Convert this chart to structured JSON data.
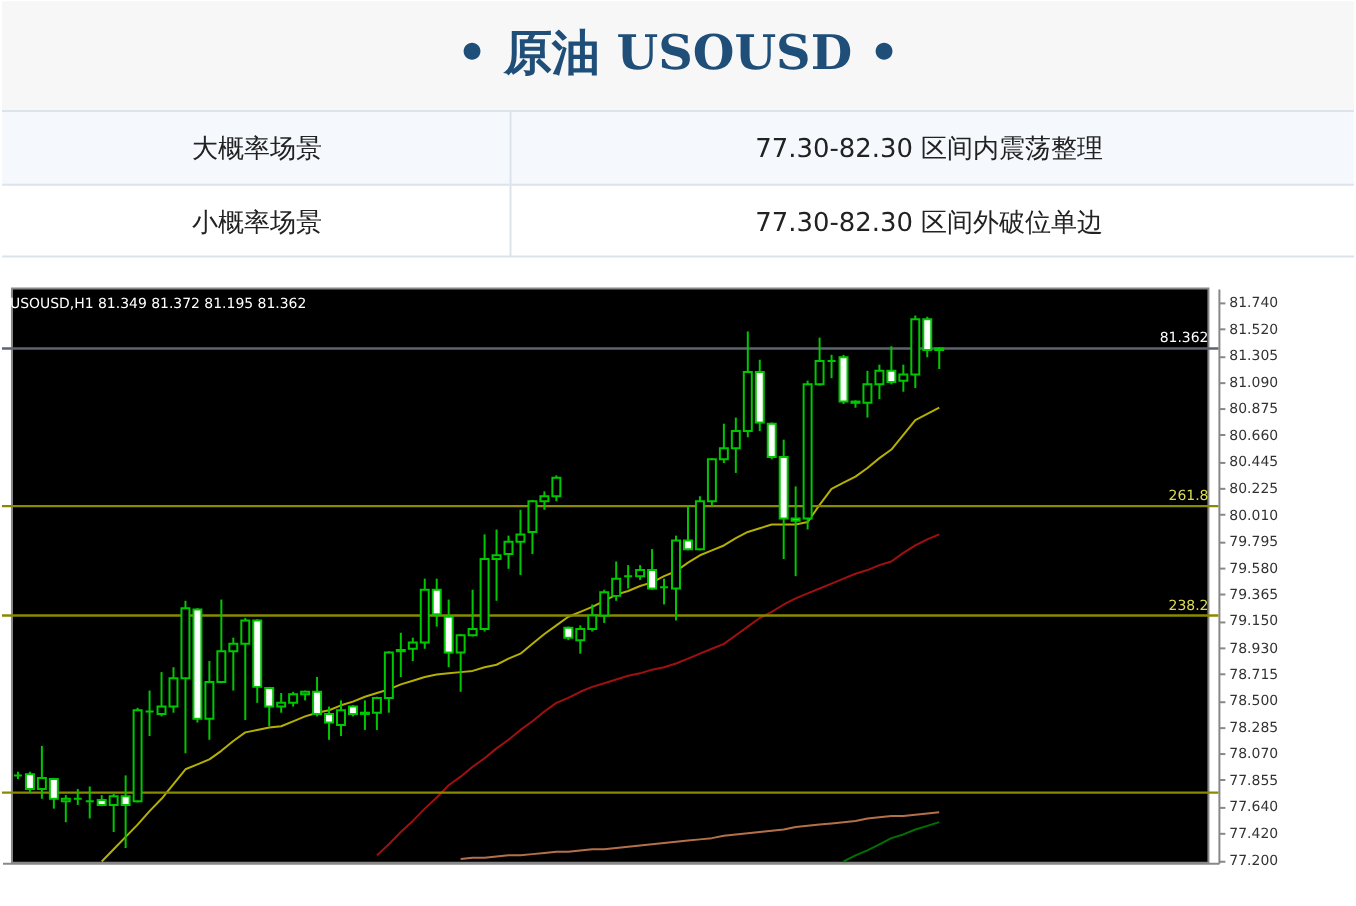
{
  "chart_data": {
    "type": "candlestick",
    "title": "• 原油 USOUSD •",
    "annotations": [
      "USOUSD,H1 81.349 81.372 81.195 81.362",
      "大概率场景",
      "77.30-82.30 区间内震荡整理",
      "小概率场景",
      "77.30-82.30 区间外破位单边",
      {
        "text": "261.8",
        "y": 80.08
      },
      {
        "text": "238.2",
        "y": 79.19
      }
    ],
    "categories": [
      null,
      null,
      null,
      null,
      null,
      null,
      null,
      null,
      null,
      null,
      null,
      null,
      null,
      null,
      null,
      null,
      null,
      null,
      null,
      null,
      null,
      null,
      null,
      null,
      null,
      null,
      null,
      null,
      null,
      null,
      null,
      null,
      null,
      null,
      null,
      null,
      null,
      null,
      null,
      null,
      null,
      null,
      null,
      null,
      null,
      null,
      null,
      null,
      null,
      null,
      null,
      null,
      null,
      null,
      null,
      null,
      null,
      null,
      null,
      null,
      null,
      null,
      null,
      null,
      null,
      null,
      null,
      null,
      null,
      null,
      null,
      null,
      null,
      null,
      null,
      null,
      null,
      null,
      null,
      null,
      null,
      null,
      null,
      null,
      null,
      null,
      null,
      null,
      null,
      null,
      null,
      null,
      null,
      null,
      null,
      null,
      null,
      null,
      null,
      null
    ],
    "color": "#00c800",
    "ohlc": [
      [
        77.89,
        77.92,
        77.86,
        77.89
      ],
      [
        77.9,
        77.92,
        77.75,
        77.78
      ],
      [
        77.78,
        78.13,
        77.7,
        77.87
      ],
      [
        77.86,
        77.87,
        77.62,
        77.7
      ],
      [
        77.68,
        77.73,
        77.51,
        77.7
      ],
      [
        77.7,
        77.78,
        77.65,
        77.7
      ],
      [
        77.68,
        77.8,
        77.54,
        77.68
      ],
      [
        77.69,
        77.73,
        77.64,
        77.65
      ],
      [
        77.65,
        77.74,
        77.43,
        77.72
      ],
      [
        77.72,
        77.89,
        77.3,
        77.65
      ],
      [
        77.68,
        78.44,
        77.67,
        78.42
      ],
      [
        78.41,
        78.58,
        78.21,
        78.41
      ],
      [
        78.39,
        78.73,
        78.37,
        78.45
      ],
      [
        78.45,
        78.77,
        78.4,
        78.68
      ],
      [
        78.68,
        79.31,
        78.07,
        79.25
      ],
      [
        79.24,
        79.25,
        78.32,
        78.35
      ],
      [
        78.35,
        78.82,
        78.18,
        78.65
      ],
      [
        78.65,
        79.32,
        78.64,
        78.9
      ],
      [
        78.9,
        79.01,
        78.58,
        78.96
      ],
      [
        78.96,
        79.17,
        78.34,
        79.15
      ],
      [
        79.15,
        79.16,
        78.48,
        78.61
      ],
      [
        78.6,
        78.61,
        78.29,
        78.45
      ],
      [
        78.45,
        78.56,
        78.4,
        78.48
      ],
      [
        78.48,
        78.57,
        78.45,
        78.55
      ],
      [
        78.55,
        78.58,
        78.5,
        78.57
      ],
      [
        78.57,
        78.69,
        78.37,
        78.39
      ],
      [
        78.39,
        78.45,
        78.18,
        78.32
      ],
      [
        78.3,
        78.5,
        78.21,
        78.42
      ],
      [
        78.45,
        78.46,
        78.37,
        78.39
      ],
      [
        78.39,
        78.5,
        78.26,
        78.4
      ],
      [
        78.4,
        78.53,
        78.26,
        78.52
      ],
      [
        78.52,
        78.9,
        78.4,
        78.89
      ],
      [
        78.9,
        79.05,
        78.69,
        78.91
      ],
      [
        78.92,
        79.01,
        78.82,
        78.97
      ],
      [
        78.97,
        79.49,
        78.92,
        79.4
      ],
      [
        79.4,
        79.49,
        79.1,
        79.2
      ],
      [
        79.18,
        79.32,
        78.77,
        78.89
      ],
      [
        78.89,
        79.04,
        78.57,
        79.03
      ],
      [
        79.03,
        79.4,
        79.02,
        79.08
      ],
      [
        79.08,
        79.85,
        79.06,
        79.65
      ],
      [
        79.65,
        79.89,
        79.31,
        79.68
      ],
      [
        79.69,
        79.84,
        79.57,
        79.79
      ],
      [
        79.79,
        80.05,
        79.52,
        79.85
      ],
      [
        79.87,
        80.13,
        79.69,
        80.12
      ],
      [
        80.12,
        80.2,
        80.05,
        80.16
      ],
      [
        80.16,
        80.33,
        80.12,
        80.31
      ],
      [
        79.09,
        79.1,
        78.99,
        79.01
      ],
      [
        78.99,
        79.11,
        78.88,
        79.08
      ],
      [
        79.08,
        79.28,
        79.06,
        79.19
      ],
      [
        79.19,
        79.4,
        79.13,
        79.38
      ],
      [
        79.35,
        79.63,
        79.31,
        79.49
      ],
      [
        79.51,
        79.6,
        79.41,
        79.51
      ],
      [
        79.51,
        79.6,
        79.48,
        79.56
      ],
      [
        79.56,
        79.73,
        79.4,
        79.41
      ],
      [
        79.42,
        79.49,
        79.28,
        79.42
      ],
      [
        79.41,
        79.84,
        79.15,
        79.8
      ],
      [
        79.8,
        80.08,
        79.72,
        79.73
      ],
      [
        79.73,
        80.16,
        79.72,
        80.12
      ],
      [
        80.12,
        80.47,
        80.08,
        80.46
      ],
      [
        80.46,
        80.75,
        80.43,
        80.55
      ],
      [
        80.55,
        80.8,
        80.35,
        80.69
      ],
      [
        80.69,
        81.5,
        80.64,
        81.17
      ],
      [
        81.17,
        81.27,
        80.69,
        80.76
      ],
      [
        80.75,
        80.76,
        80.46,
        80.48
      ],
      [
        80.48,
        80.62,
        79.65,
        79.98
      ],
      [
        79.98,
        80.24,
        79.51,
        79.96
      ],
      [
        79.98,
        81.1,
        79.89,
        81.07
      ],
      [
        81.07,
        81.45,
        81.06,
        81.26
      ],
      [
        81.26,
        81.31,
        81.12,
        81.26
      ],
      [
        81.29,
        81.31,
        80.91,
        80.93
      ],
      [
        80.93,
        80.94,
        80.88,
        80.92
      ],
      [
        80.92,
        81.18,
        80.8,
        81.07
      ],
      [
        81.07,
        81.23,
        80.95,
        81.18
      ],
      [
        81.18,
        81.38,
        81.07,
        81.09
      ],
      [
        81.1,
        81.23,
        81.01,
        81.15
      ],
      [
        81.15,
        81.63,
        81.04,
        81.6
      ],
      [
        81.6,
        81.62,
        81.29,
        81.35
      ],
      [
        81.349,
        81.372,
        81.195,
        81.362
      ],
      null,
      null,
      null,
      null,
      null,
      null,
      null,
      null,
      null,
      null,
      null,
      null,
      null,
      null,
      null,
      null,
      null,
      null,
      null,
      null,
      null,
      null
    ],
    "series": [
      {
        "type": "line",
        "color": "#b5b000",
        "values": [
          null,
          null,
          null,
          null,
          null,
          null,
          null,
          77.19,
          77.29,
          77.39,
          77.49,
          77.6,
          77.7,
          77.82,
          77.94,
          77.98,
          78.02,
          78.09,
          78.17,
          78.24,
          78.26,
          78.28,
          78.29,
          78.33,
          78.37,
          78.4,
          78.42,
          78.46,
          78.49,
          78.53,
          78.56,
          78.59,
          78.63,
          78.66,
          78.69,
          78.71,
          78.72,
          78.73,
          78.74,
          78.77,
          78.79,
          78.84,
          78.88,
          78.96,
          79.04,
          79.11,
          79.18,
          79.22,
          79.26,
          79.31,
          79.36,
          79.39,
          79.43,
          79.46,
          79.51,
          79.55,
          79.62,
          79.68,
          79.72,
          79.76,
          79.82,
          79.87,
          79.9,
          79.93,
          79.93,
          79.93,
          79.95,
          80.09,
          80.22,
          80.27,
          80.32,
          80.39,
          80.47,
          80.54,
          80.66,
          80.78,
          80.83,
          80.88,
          null,
          null,
          null,
          null,
          null,
          null,
          null,
          null,
          null,
          null,
          null,
          null,
          null,
          null,
          null,
          null,
          null,
          null,
          null,
          null,
          null,
          null
        ]
      },
      {
        "type": "line",
        "color": "#a01010",
        "values": [
          null,
          null,
          null,
          null,
          null,
          null,
          null,
          null,
          null,
          null,
          null,
          null,
          null,
          null,
          null,
          null,
          null,
          null,
          null,
          null,
          null,
          null,
          null,
          null,
          null,
          null,
          null,
          null,
          null,
          null,
          77.24,
          77.33,
          77.43,
          77.52,
          77.62,
          77.71,
          77.81,
          77.88,
          77.96,
          78.03,
          78.11,
          78.18,
          78.26,
          78.33,
          78.41,
          78.48,
          78.52,
          78.57,
          78.61,
          78.64,
          78.67,
          78.7,
          78.72,
          78.75,
          78.77,
          78.8,
          78.84,
          78.88,
          78.92,
          78.96,
          79.03,
          79.1,
          79.17,
          79.22,
          79.28,
          79.33,
          79.37,
          79.41,
          79.45,
          79.49,
          79.53,
          79.56,
          79.6,
          79.63,
          79.7,
          79.76,
          79.81,
          79.85,
          null,
          null,
          null,
          null,
          null,
          null,
          null,
          null,
          null,
          null,
          null,
          null,
          null,
          null,
          null,
          null,
          null,
          null,
          null,
          null,
          null,
          null
        ]
      },
      {
        "type": "line",
        "color": "#b5704a",
        "values": [
          null,
          null,
          null,
          null,
          null,
          null,
          null,
          null,
          null,
          null,
          null,
          null,
          null,
          null,
          null,
          null,
          null,
          null,
          null,
          null,
          null,
          null,
          null,
          null,
          null,
          null,
          null,
          null,
          null,
          null,
          null,
          null,
          null,
          null,
          null,
          null,
          null,
          77.21,
          77.22,
          77.22,
          77.23,
          77.24,
          77.24,
          77.25,
          77.26,
          77.27,
          77.27,
          77.28,
          77.29,
          77.29,
          77.3,
          77.31,
          77.32,
          77.33,
          77.34,
          77.35,
          77.36,
          77.37,
          77.38,
          77.4,
          77.41,
          77.42,
          77.43,
          77.44,
          77.45,
          77.47,
          77.48,
          77.49,
          77.5,
          77.51,
          77.52,
          77.54,
          77.55,
          77.56,
          77.56,
          77.57,
          77.58,
          77.59,
          null,
          null,
          null,
          null,
          null,
          null,
          null,
          null,
          null,
          null,
          null,
          null,
          null,
          null,
          null,
          null,
          null,
          null,
          null,
          null,
          null,
          null
        ]
      },
      {
        "type": "line",
        "color": "#007000",
        "values": [
          null,
          null,
          null,
          null,
          null,
          null,
          null,
          null,
          null,
          null,
          null,
          null,
          null,
          null,
          null,
          null,
          null,
          null,
          null,
          null,
          null,
          null,
          null,
          null,
          null,
          null,
          null,
          null,
          null,
          null,
          null,
          null,
          null,
          null,
          null,
          null,
          null,
          null,
          null,
          null,
          null,
          null,
          null,
          null,
          null,
          null,
          null,
          null,
          null,
          null,
          null,
          null,
          null,
          null,
          null,
          null,
          null,
          null,
          null,
          null,
          null,
          null,
          null,
          null,
          null,
          null,
          null,
          null,
          null,
          77.19,
          77.24,
          77.28,
          77.33,
          77.38,
          77.41,
          77.45,
          77.48,
          77.51,
          null,
          null,
          null,
          null,
          null,
          null,
          null,
          null,
          null,
          null,
          null,
          null,
          null,
          null,
          null,
          null,
          null,
          null,
          null,
          null,
          null,
          null
        ]
      }
    ],
    "ref_lines": [
      {
        "axis": "y",
        "value": 81.362,
        "label": "81.362",
        "color": "#5a6470"
      },
      {
        "axis": "y",
        "value": 80.08,
        "color": "#8a8a00"
      },
      {
        "axis": "y",
        "value": 79.19,
        "color": "#8a8a00"
      },
      {
        "axis": "y",
        "value": 77.75,
        "color": "#8a8a00"
      }
    ],
    "ylim": [
      77.18,
      81.85
    ],
    "yticks": [
      {
        "value": 81.74,
        "label": "81.740"
      },
      {
        "value": 81.52,
        "label": "81.520"
      },
      81.305,
      {
        "value": 81.09,
        "label": "81.090"
      },
      80.875,
      {
        "value": 80.66,
        "label": "80.660"
      },
      80.445,
      80.225,
      {
        "value": 80.01,
        "label": "80.010"
      },
      79.795,
      {
        "value": 79.58,
        "label": "79.580"
      },
      79.365,
      {
        "value": 79.15,
        "label": "79.150"
      },
      {
        "value": 78.93,
        "label": "78.930"
      },
      78.715,
      {
        "value": 78.5,
        "label": "78.500"
      },
      78.285,
      {
        "value": 78.07,
        "label": "78.070"
      },
      77.855,
      {
        "value": 77.64,
        "label": "77.640"
      },
      {
        "value": 77.42,
        "label": "77.420"
      },
      {
        "value": 77.2,
        "label": "77.200"
      }
    ],
    "tick_labels": "y",
    "grid": false,
    "legend": false
  }
}
